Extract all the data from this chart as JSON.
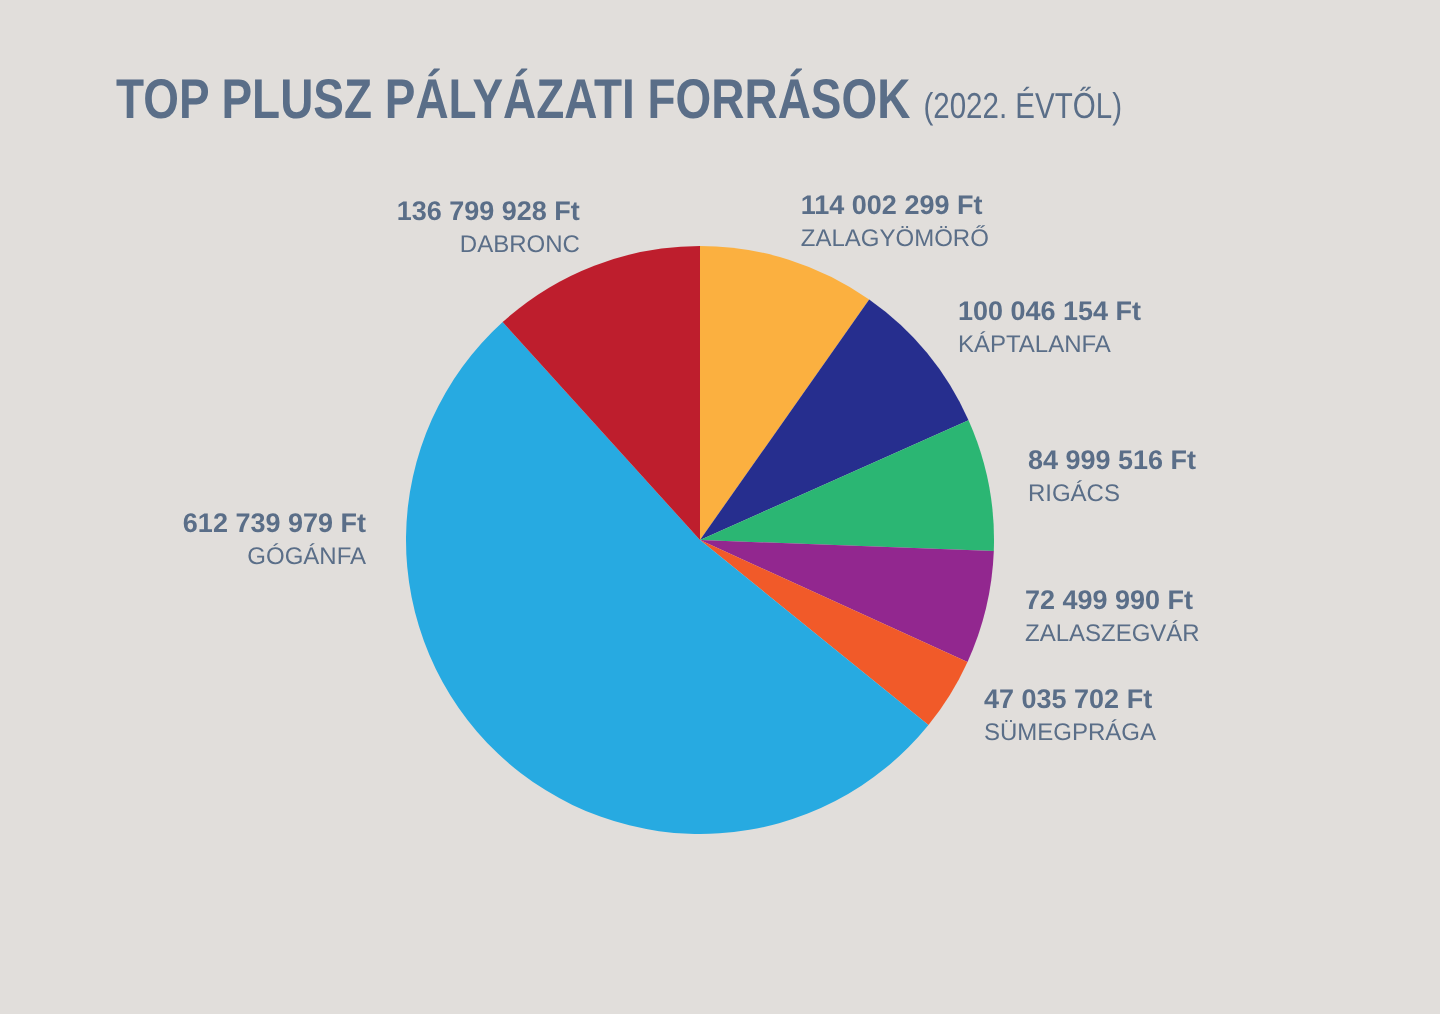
{
  "chart_data": {
    "type": "pie",
    "title": "TOP PLUSZ PÁLYÁZATI FORRÁSOK",
    "subtitle": "(2022. ÉVTŐL)",
    "categories": [
      "ZALAGYÖMÖRŐ",
      "KÁPTALANFA",
      "RIGÁCS",
      "ZALASZEGVÁR",
      "SÜMEGPRÁGA",
      "GÓGÁNFA",
      "DABRONC"
    ],
    "values": [
      114002299,
      100046154,
      84999516,
      72499990,
      47035702,
      612739979,
      136799928
    ],
    "colors": [
      "#fbb040",
      "#262e8e",
      "#2bb673",
      "#92278f",
      "#f15a29",
      "#27aae1",
      "#be1e2d"
    ],
    "value_labels": [
      "114 002 299 Ft",
      "100 046 154 Ft",
      "84 999 516 Ft",
      "72 499 990 Ft",
      "47 035 702 Ft",
      "612 739 979 Ft",
      "136 799 928 Ft"
    ]
  }
}
